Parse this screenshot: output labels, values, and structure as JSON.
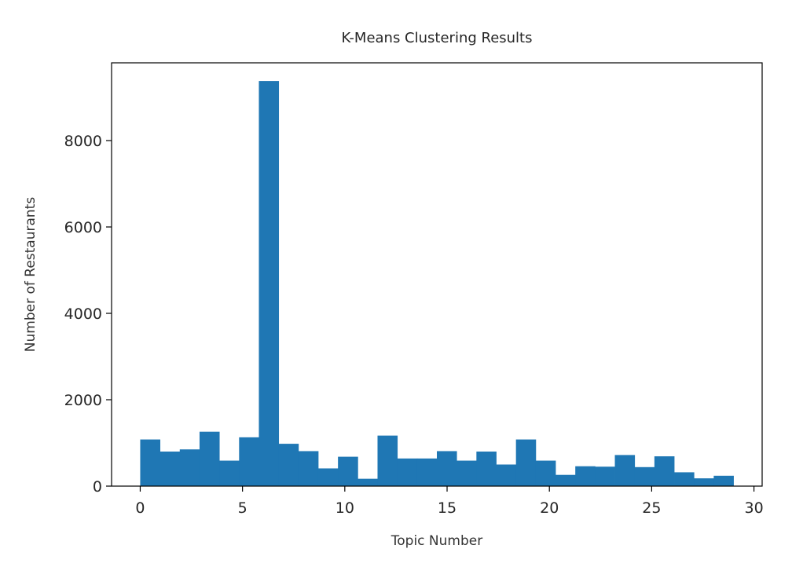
{
  "chart_data": {
    "type": "bar",
    "title": "K-Means Clustering Results",
    "xlabel": "Topic Number",
    "ylabel": "Number of Restaurants",
    "xlim": [
      -1.4,
      30.4
    ],
    "ylim": [
      0,
      9800
    ],
    "x_ticks": [
      0,
      5,
      10,
      15,
      20,
      25,
      30
    ],
    "y_ticks": [
      0,
      2000,
      4000,
      6000,
      8000
    ],
    "bin_edges": [
      0,
      0.9667,
      1.9333,
      2.9,
      3.8667,
      4.8333,
      5.8,
      6.7667,
      7.7333,
      8.7,
      9.6667,
      10.6333,
      11.6,
      12.5667,
      13.5333,
      14.5,
      15.4667,
      16.4333,
      17.4,
      18.3667,
      19.3333,
      20.3,
      21.2667,
      22.2333,
      23.2,
      24.1667,
      25.1333,
      26.1,
      27.0667,
      28.0333,
      29.0
    ],
    "values": [
      1080,
      800,
      850,
      1260,
      590,
      1130,
      9380,
      980,
      810,
      410,
      680,
      170,
      1170,
      640,
      640,
      810,
      590,
      800,
      500,
      1080,
      590,
      260,
      460,
      450,
      720,
      440,
      690,
      320,
      180,
      240
    ],
    "bar_color": "#1f77b4",
    "grid": false,
    "legend": "none"
  }
}
